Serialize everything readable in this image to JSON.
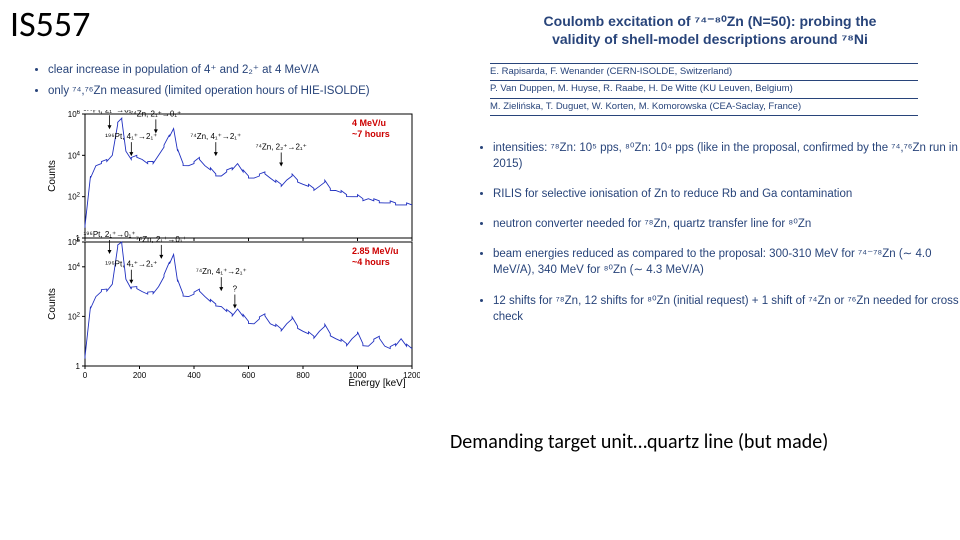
{
  "slide_title": "IS557",
  "left_bullets": [
    "clear increase in population of 4⁺ and 2₂⁺ at 4 MeV/A",
    "only ⁷⁴,⁷⁶Zn measured (limited operation hours of HIE-ISOLDE)"
  ],
  "right_title_l1": "Coulomb excitation of ⁷⁴⁻⁸⁰Zn (N=50): probing the",
  "right_title_l2": "validity of shell-model descriptions around ⁷⁸Ni",
  "authors_line1": "E. Rapisarda, F. Wenander (CERN-ISOLDE, Switzerland)",
  "authors_line2": "P. Van Duppen, M. Huyse, R. Raabe, H. De Witte (KU Leuven, Belgium)",
  "authors_line3": "M. Zielińska, T. Duguet, W. Korten, M. Komorowska (CEA-Saclay, France)",
  "right_bullets": [
    "intensities: ⁷⁸Zn: 10⁵ pps, ⁸⁰Zn: 10⁴ pps (like in the proposal, confirmed by the ⁷⁴,⁷⁶Zn run in 2015)",
    "RILIS for selective ionisation of Zn to reduce Rb and Ga contamination",
    "neutron converter needed for ⁷⁸Zn, quartz transfer line for ⁸⁰Zn",
    "beam energies reduced as compared to the proposal: 300-310 MeV for ⁷⁴⁻⁷⁸Zn (∼ 4.0 MeV/A), 340 MeV for ⁸⁰Zn (∼ 4.3 MeV/A)",
    "12 shifts for ⁷⁸Zn, 12 shifts for ⁸⁰Zn (initial request) + 1 shift of ⁷⁴Zn or ⁷⁶Zn needed for cross check"
  ],
  "footnote": "Demanding target unit…quartz line (but made)",
  "chart": {
    "type": "two-stacked-log-spectra",
    "xlabel": "Energy [keV]",
    "ylabel": "Counts",
    "xlim": [
      0,
      1200
    ],
    "xtick_step": 200,
    "line_color": "#2030c0",
    "grid_color": "#ffffff",
    "top_panel": {
      "ylim_exp": [
        0,
        6
      ],
      "ytick_exp": [
        0,
        2,
        4,
        6
      ],
      "red_annotation_l1": "4 MeV/u",
      "red_annotation_l2": "~7 hours",
      "annotations": [
        {
          "x": 90,
          "y_exp": 5.6,
          "text": "¹⁹⁶Pt, 2₁⁺→0₁⁺"
        },
        {
          "x": 260,
          "y_exp": 5.4,
          "text": "⁷⁴Zn, 2₁⁺→0₁⁺"
        },
        {
          "x": 170,
          "y_exp": 4.3,
          "text": "¹⁹⁶Pt, 4₁⁺→2₁⁺"
        },
        {
          "x": 480,
          "y_exp": 4.3,
          "text": "⁷⁴Zn, 4₁⁺→2₁⁺"
        },
        {
          "x": 720,
          "y_exp": 3.8,
          "text": "⁷⁴Zn, 2₂⁺→2₁⁺"
        }
      ],
      "spectrum": [
        [
          0,
          0.5
        ],
        [
          20,
          3.0
        ],
        [
          40,
          3.5
        ],
        [
          60,
          3.6
        ],
        [
          80,
          3.8
        ],
        [
          100,
          4.0
        ],
        [
          120,
          5.5
        ],
        [
          135,
          5.8
        ],
        [
          150,
          4.2
        ],
        [
          170,
          3.8
        ],
        [
          190,
          4.0
        ],
        [
          210,
          3.8
        ],
        [
          230,
          3.6
        ],
        [
          250,
          3.7
        ],
        [
          270,
          4.0
        ],
        [
          290,
          4.4
        ],
        [
          310,
          5.0
        ],
        [
          325,
          5.3
        ],
        [
          340,
          4.2
        ],
        [
          360,
          3.6
        ],
        [
          380,
          3.5
        ],
        [
          400,
          3.6
        ],
        [
          420,
          3.9
        ],
        [
          440,
          3.5
        ],
        [
          460,
          3.3
        ],
        [
          480,
          3.1
        ],
        [
          500,
          3.0
        ],
        [
          520,
          3.2
        ],
        [
          540,
          3.4
        ],
        [
          560,
          3.6
        ],
        [
          580,
          3.2
        ],
        [
          600,
          3.0
        ],
        [
          620,
          2.9
        ],
        [
          640,
          3.0
        ],
        [
          660,
          3.2
        ],
        [
          680,
          2.9
        ],
        [
          700,
          2.7
        ],
        [
          720,
          2.6
        ],
        [
          740,
          2.8
        ],
        [
          760,
          3.0
        ],
        [
          780,
          2.8
        ],
        [
          800,
          2.6
        ],
        [
          820,
          2.5
        ],
        [
          840,
          2.4
        ],
        [
          860,
          2.5
        ],
        [
          880,
          2.7
        ],
        [
          900,
          2.4
        ],
        [
          920,
          2.3
        ],
        [
          940,
          2.2
        ],
        [
          960,
          2.1
        ],
        [
          980,
          2.0
        ],
        [
          1000,
          2.0
        ],
        [
          1020,
          1.9
        ],
        [
          1040,
          1.9
        ],
        [
          1060,
          1.8
        ],
        [
          1080,
          1.8
        ],
        [
          1100,
          1.7
        ],
        [
          1120,
          1.7
        ],
        [
          1140,
          1.7
        ],
        [
          1160,
          1.6
        ],
        [
          1180,
          1.6
        ],
        [
          1200,
          1.6
        ]
      ]
    },
    "bottom_panel": {
      "ylim_exp": [
        0,
        5
      ],
      "ytick_exp": [
        0,
        2,
        4,
        5
      ],
      "red_annotation_l1": "2.85 MeV/u",
      "red_annotation_l2": "~4 hours",
      "annotations": [
        {
          "x": 90,
          "y_exp": 4.8,
          "text": "¹⁹⁶Pt, 2₁⁺→0₁⁺"
        },
        {
          "x": 280,
          "y_exp": 4.6,
          "text": "⁷⁴Zn, 2₁⁺→0₁⁺"
        },
        {
          "x": 170,
          "y_exp": 3.6,
          "text": "¹⁹⁶Pt, 4₁⁺→2₁⁺"
        },
        {
          "x": 500,
          "y_exp": 3.3,
          "text": "⁷⁴Zn, 4₁⁺→2₁⁺"
        },
        {
          "x": 550,
          "y_exp": 2.6,
          "text": "?"
        }
      ],
      "spectrum": [
        [
          0,
          0.3
        ],
        [
          20,
          2.4
        ],
        [
          40,
          2.8
        ],
        [
          60,
          3.0
        ],
        [
          80,
          3.1
        ],
        [
          100,
          3.3
        ],
        [
          120,
          4.8
        ],
        [
          135,
          5.0
        ],
        [
          150,
          3.5
        ],
        [
          170,
          3.1
        ],
        [
          190,
          3.2
        ],
        [
          210,
          3.0
        ],
        [
          230,
          2.9
        ],
        [
          250,
          3.0
        ],
        [
          270,
          3.2
        ],
        [
          290,
          3.6
        ],
        [
          310,
          4.2
        ],
        [
          325,
          4.5
        ],
        [
          340,
          3.4
        ],
        [
          360,
          2.9
        ],
        [
          380,
          2.8
        ],
        [
          400,
          2.9
        ],
        [
          420,
          3.1
        ],
        [
          440,
          2.8
        ],
        [
          460,
          2.6
        ],
        [
          480,
          2.5
        ],
        [
          500,
          2.4
        ],
        [
          520,
          2.2
        ],
        [
          540,
          2.1
        ],
        [
          560,
          2.3
        ],
        [
          580,
          2.0
        ],
        [
          600,
          1.8
        ],
        [
          620,
          1.7
        ],
        [
          640,
          1.9
        ],
        [
          660,
          2.1
        ],
        [
          680,
          1.7
        ],
        [
          700,
          1.6
        ],
        [
          720,
          1.5
        ],
        [
          740,
          1.7
        ],
        [
          760,
          1.9
        ],
        [
          780,
          1.6
        ],
        [
          800,
          1.4
        ],
        [
          820,
          1.3
        ],
        [
          840,
          1.2
        ],
        [
          860,
          1.4
        ],
        [
          880,
          1.6
        ],
        [
          900,
          1.3
        ],
        [
          920,
          1.1
        ],
        [
          940,
          1.0
        ],
        [
          960,
          0.9
        ],
        [
          980,
          1.1
        ],
        [
          1000,
          1.3
        ],
        [
          1020,
          0.9
        ],
        [
          1040,
          0.8
        ],
        [
          1060,
          1.0
        ],
        [
          1080,
          1.2
        ],
        [
          1100,
          0.8
        ],
        [
          1120,
          0.7
        ],
        [
          1140,
          0.9
        ],
        [
          1160,
          1.1
        ],
        [
          1180,
          0.8
        ],
        [
          1200,
          0.7
        ]
      ]
    }
  }
}
